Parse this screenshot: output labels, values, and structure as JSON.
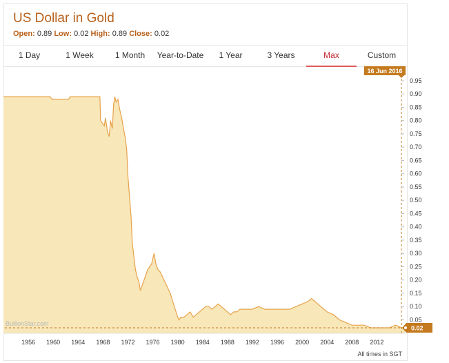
{
  "header": {
    "title": "US Dollar in Gold",
    "open_label": "Open:",
    "open_value": "0.89",
    "low_label": "Low:",
    "low_value": "0.02",
    "high_label": "High:",
    "high_value": "0.89",
    "close_label": "Close:",
    "close_value": "0.02"
  },
  "tabs": [
    {
      "label": "1 Day"
    },
    {
      "label": "1 Week"
    },
    {
      "label": "1 Month"
    },
    {
      "label": "Year-to-Date"
    },
    {
      "label": "1 Year"
    },
    {
      "label": "3 Years"
    },
    {
      "label": "Max",
      "active": true
    },
    {
      "label": "Custom"
    }
  ],
  "footer": {
    "watermark": "BullionStar.com",
    "timezone_note": "All times in SGT"
  },
  "colors": {
    "accent": "#b8621d",
    "area_fill": "#f7e7b9",
    "line": "#e8a24a",
    "active_tab": "#c1272d",
    "badge": "#c47a1e"
  },
  "chart_data": {
    "type": "area",
    "title": "US Dollar in Gold",
    "xlabel": "",
    "ylabel": "",
    "xlim": [
      1952,
      2016.5
    ],
    "ylim": [
      0,
      0.95
    ],
    "y_ticks": [
      "0.05",
      "0.10",
      "0.15",
      "0.20",
      "0.25",
      "0.30",
      "0.35",
      "0.40",
      "0.45",
      "0.50",
      "0.55",
      "0.60",
      "0.65",
      "0.70",
      "0.75",
      "0.80",
      "0.85",
      "0.90",
      "0.95"
    ],
    "x_ticks": [
      "1956",
      "1960",
      "1964",
      "1968",
      "1972",
      "1976",
      "1980",
      "1984",
      "1988",
      "1992",
      "1996",
      "2000",
      "2004",
      "2008",
      "2012"
    ],
    "crosshair_date": "16 Jun 2016",
    "last_value": "0.02",
    "grid": false,
    "series": [
      {
        "values": [
          [
            1952,
            0.89
          ],
          [
            1959.5,
            0.89
          ],
          [
            1959.8,
            0.88
          ],
          [
            1962.5,
            0.88
          ],
          [
            1962.7,
            0.89
          ],
          [
            1967.5,
            0.89
          ],
          [
            1967.6,
            0.8
          ],
          [
            1967.9,
            0.79
          ],
          [
            1968.2,
            0.78
          ],
          [
            1968.4,
            0.81
          ],
          [
            1968.7,
            0.76
          ],
          [
            1969.0,
            0.74
          ],
          [
            1969.2,
            0.8
          ],
          [
            1969.5,
            0.77
          ],
          [
            1969.7,
            0.86
          ],
          [
            1969.9,
            0.89
          ],
          [
            1970.1,
            0.87
          ],
          [
            1970.4,
            0.88
          ],
          [
            1970.7,
            0.84
          ],
          [
            1971.0,
            0.81
          ],
          [
            1971.3,
            0.77
          ],
          [
            1971.6,
            0.73
          ],
          [
            1971.8,
            0.69
          ],
          [
            1972.0,
            0.59
          ],
          [
            1972.3,
            0.5
          ],
          [
            1972.5,
            0.44
          ],
          [
            1972.7,
            0.34
          ],
          [
            1973.0,
            0.28
          ],
          [
            1973.2,
            0.24
          ],
          [
            1973.5,
            0.21
          ],
          [
            1973.8,
            0.19
          ],
          [
            1974.0,
            0.16
          ],
          [
            1974.3,
            0.18
          ],
          [
            1974.6,
            0.2
          ],
          [
            1974.9,
            0.22
          ],
          [
            1975.2,
            0.24
          ],
          [
            1975.5,
            0.25
          ],
          [
            1975.8,
            0.26
          ],
          [
            1976.0,
            0.28
          ],
          [
            1976.2,
            0.3
          ],
          [
            1976.5,
            0.26
          ],
          [
            1976.8,
            0.24
          ],
          [
            1977.2,
            0.23
          ],
          [
            1977.6,
            0.21
          ],
          [
            1978.0,
            0.19
          ],
          [
            1978.4,
            0.17
          ],
          [
            1978.8,
            0.15
          ],
          [
            1979.2,
            0.12
          ],
          [
            1979.6,
            0.09
          ],
          [
            1980.0,
            0.06
          ],
          [
            1980.2,
            0.05
          ],
          [
            1980.5,
            0.06
          ],
          [
            1981.0,
            0.06
          ],
          [
            1981.5,
            0.07
          ],
          [
            1982.0,
            0.08
          ],
          [
            1982.5,
            0.06
          ],
          [
            1983.0,
            0.07
          ],
          [
            1983.5,
            0.08
          ],
          [
            1984.0,
            0.09
          ],
          [
            1984.5,
            0.1
          ],
          [
            1985.0,
            0.1
          ],
          [
            1985.5,
            0.09
          ],
          [
            1986.0,
            0.1
          ],
          [
            1986.5,
            0.11
          ],
          [
            1987.0,
            0.1
          ],
          [
            1987.5,
            0.09
          ],
          [
            1988.0,
            0.08
          ],
          [
            1988.5,
            0.07
          ],
          [
            1989.0,
            0.08
          ],
          [
            1989.5,
            0.08
          ],
          [
            1990.0,
            0.09
          ],
          [
            1990.5,
            0.09
          ],
          [
            1991.0,
            0.09
          ],
          [
            1992.0,
            0.09
          ],
          [
            1993.0,
            0.1
          ],
          [
            1994.0,
            0.09
          ],
          [
            1995.0,
            0.09
          ],
          [
            1996.0,
            0.09
          ],
          [
            1997.0,
            0.09
          ],
          [
            1998.0,
            0.09
          ],
          [
            1999.0,
            0.1
          ],
          [
            2000.0,
            0.11
          ],
          [
            2001.0,
            0.12
          ],
          [
            2001.5,
            0.13
          ],
          [
            2002.0,
            0.12
          ],
          [
            2002.5,
            0.11
          ],
          [
            2003.0,
            0.1
          ],
          [
            2003.5,
            0.09
          ],
          [
            2004.0,
            0.08
          ],
          [
            2005.0,
            0.07
          ],
          [
            2006.0,
            0.05
          ],
          [
            2007.0,
            0.04
          ],
          [
            2008.0,
            0.03
          ],
          [
            2009.0,
            0.03
          ],
          [
            2010.0,
            0.03
          ],
          [
            2011.0,
            0.02
          ],
          [
            2012.0,
            0.02
          ],
          [
            2013.0,
            0.02
          ],
          [
            2014.0,
            0.02
          ],
          [
            2015.0,
            0.03
          ],
          [
            2016.0,
            0.02
          ],
          [
            2016.5,
            0.02
          ]
        ]
      }
    ]
  }
}
